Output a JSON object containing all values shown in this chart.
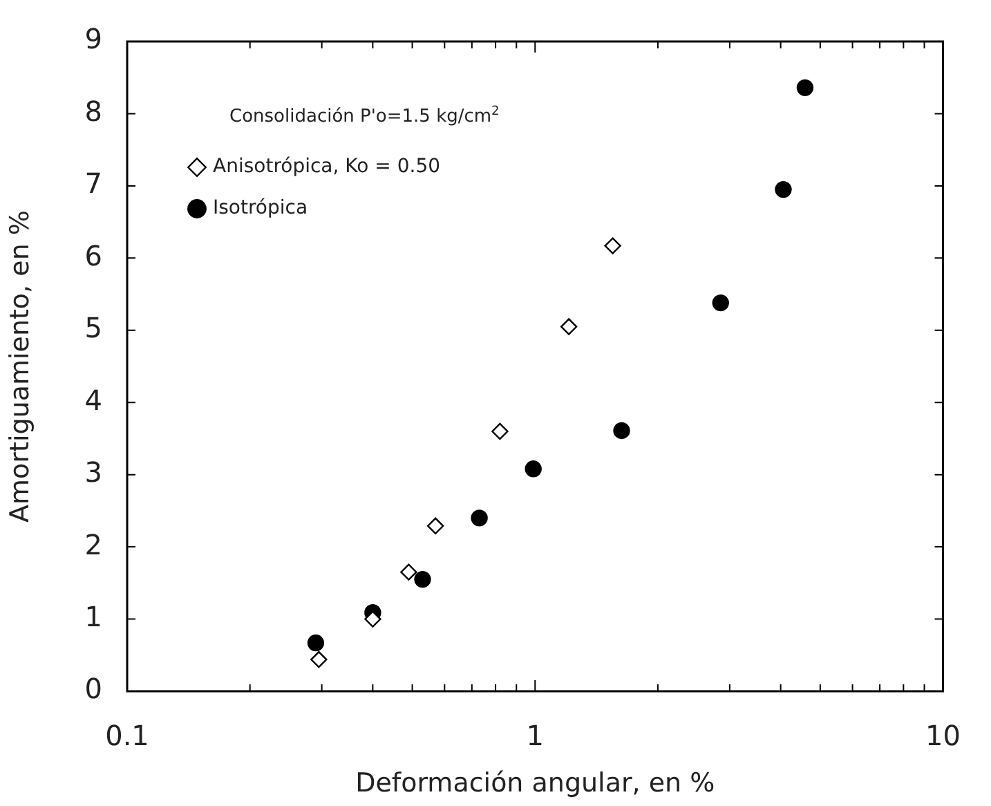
{
  "chart_data": {
    "type": "scatter",
    "xlabel": "Deformación angular, en %",
    "ylabel": "Amortiguamiento, en %",
    "annotations": [
      "Consolidación P'o=1.5 kg/cm$^{2}$"
    ],
    "log": "x",
    "legend": "top left",
    "xlim": [
      0.1,
      10
    ],
    "xticks": [
      0.1,
      {
        "value": 0.2,
        "label": null
      },
      {
        "value": 0.3,
        "label": null
      },
      {
        "value": 0.4,
        "label": null
      },
      {
        "value": 0.5,
        "label": null
      },
      {
        "value": 0.6,
        "label": null
      },
      {
        "value": 0.7,
        "label": null
      },
      {
        "value": 0.8,
        "label": null
      },
      {
        "value": 0.9,
        "label": null
      },
      1,
      {
        "value": 2,
        "label": null
      },
      {
        "value": 3,
        "label": null
      },
      {
        "value": 4,
        "label": null
      },
      {
        "value": 5,
        "label": null
      },
      {
        "value": 6,
        "label": null
      },
      {
        "value": 7,
        "label": null
      },
      {
        "value": 8,
        "label": null
      },
      {
        "value": 9,
        "label": null
      },
      10
    ],
    "ylim": [
      0,
      9
    ],
    "yticks": [
      0,
      1,
      2,
      3,
      4,
      5,
      6,
      7,
      8,
      9
    ],
    "series": [
      {
        "name": "Anisotrópica, Ko = 0.50",
        "color": "#000000",
        "marker": "diamond",
        "x": [
          0.295,
          0.4,
          0.49,
          0.57,
          0.82,
          1.21,
          1.55
        ],
        "values": [
          0.44,
          1.0,
          1.65,
          2.29,
          3.6,
          5.05,
          6.17
        ]
      },
      {
        "name": "Isotrópica",
        "color": "#000000",
        "marker": "circle",
        "x": [
          0.29,
          0.4,
          0.53,
          0.73,
          0.99,
          1.63,
          2.85,
          4.06,
          4.59
        ],
        "values": [
          0.67,
          1.09,
          1.55,
          2.4,
          3.08,
          3.61,
          5.38,
          6.95,
          8.36
        ]
      }
    ]
  }
}
